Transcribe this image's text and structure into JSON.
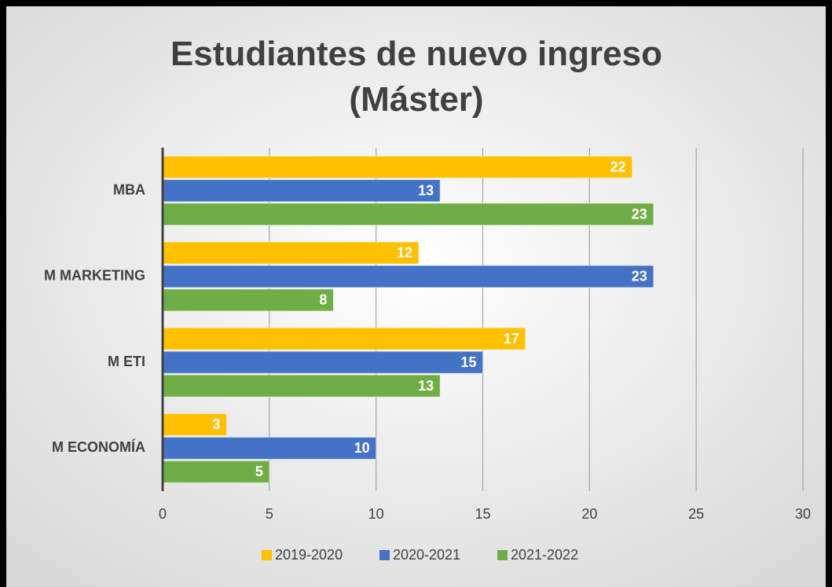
{
  "chart_data": {
    "type": "hbar",
    "title": "Estudiantes de nuevo ingreso (Máster)",
    "categories": [
      "MBA",
      "M MARKETING",
      "M ETI",
      "M ECONOMÍA"
    ],
    "series": [
      {
        "name": "2019-2020",
        "color": "#ffc000",
        "values": [
          22,
          12,
          17,
          3
        ]
      },
      {
        "name": "2020-2021",
        "color": "#4472c4",
        "values": [
          13,
          23,
          15,
          10
        ]
      },
      {
        "name": "2021-2022",
        "color": "#70ad47",
        "values": [
          23,
          8,
          13,
          5
        ]
      }
    ],
    "xlim": [
      0,
      30
    ],
    "xticks": [
      0,
      5,
      10,
      15,
      20,
      25,
      30
    ],
    "grid": true,
    "legend": "bottom"
  }
}
